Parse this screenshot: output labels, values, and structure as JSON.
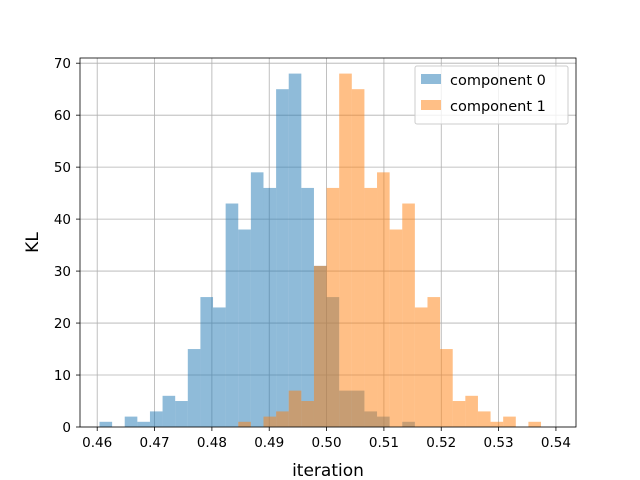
{
  "chart_data": {
    "type": "histogram",
    "title": "",
    "xlabel": "iteration",
    "ylabel": "KL",
    "xlim": [
      0.457,
      0.5435
    ],
    "ylim": [
      0,
      71
    ],
    "grid": true,
    "legend_position": "top-right",
    "bin_width": 0.0022,
    "x_ticks": [
      "0.46",
      "0.47",
      "0.48",
      "0.49",
      "0.50",
      "0.51",
      "0.52",
      "0.53",
      "0.54"
    ],
    "x_tick_values": [
      0.46,
      0.47,
      0.48,
      0.49,
      0.5,
      0.51,
      0.52,
      0.53,
      0.54
    ],
    "y_ticks": [
      "0",
      "10",
      "20",
      "30",
      "40",
      "50",
      "60",
      "70"
    ],
    "y_tick_values": [
      0,
      10,
      20,
      30,
      40,
      50,
      60,
      70
    ],
    "series": [
      {
        "name": "component 0",
        "color": "#1f77b4",
        "opacity": 0.5,
        "bin_start": 0.4604,
        "counts": [
          1,
          0,
          2,
          1,
          3,
          6,
          5,
          15,
          25,
          23,
          43,
          38,
          49,
          46,
          65,
          68,
          46,
          31,
          25,
          7,
          7,
          3,
          2,
          0,
          1
        ]
      },
      {
        "name": "component 1",
        "color": "#ff7f0e",
        "opacity": 0.5,
        "bin_start": 0.4846,
        "counts": [
          1,
          0,
          2,
          3,
          7,
          5,
          31,
          46,
          68,
          65,
          46,
          49,
          38,
          43,
          23,
          25,
          15,
          5,
          6,
          3,
          1,
          2,
          0,
          1
        ]
      }
    ]
  }
}
